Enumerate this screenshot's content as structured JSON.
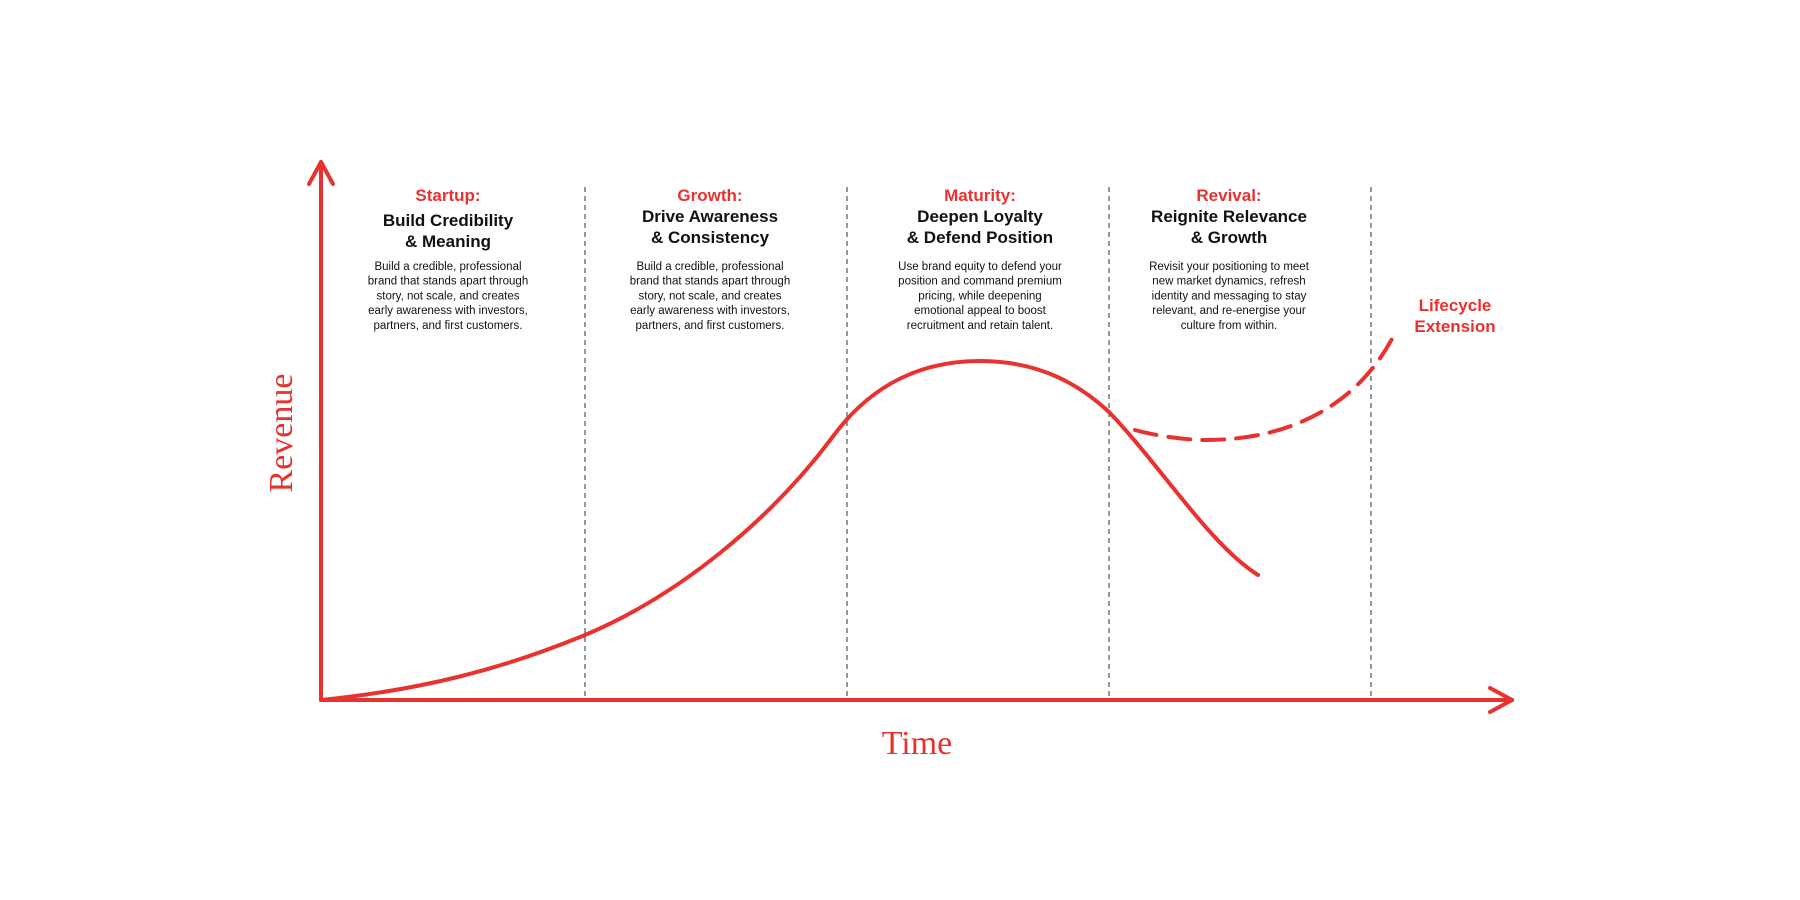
{
  "axes": {
    "y_label": "Revenue",
    "x_label": "Time"
  },
  "stages": [
    {
      "label": "Startup:",
      "title": [
        "Build Credibility",
        "& Meaning"
      ],
      "description": [
        "Build a credible, professional",
        "brand that stands apart through",
        "story, not scale, and creates",
        "early awareness with investors,",
        "partners, and first customers."
      ]
    },
    {
      "label": "Growth:",
      "title": [
        "Drive Awareness",
        "& Consistency"
      ],
      "description": [
        "Build a credible, professional",
        "brand that stands apart through",
        "story, not scale, and creates",
        "early awareness with investors,",
        "partners, and first customers."
      ]
    },
    {
      "label": "Maturity:",
      "title": [
        "Deepen Loyalty",
        "& Defend Position"
      ],
      "description": [
        "Use brand equity to defend your",
        "position and command premium",
        "pricing, while deepening",
        "emotional appeal to boost",
        "recruitment and retain talent."
      ]
    },
    {
      "label": "Revival:",
      "title": [
        "Reignite Relevance",
        "& Growth"
      ],
      "description": [
        "Revisit your positioning to meet",
        "new market dynamics, refresh",
        "identity and messaging to stay",
        "relevant, and re-energise your",
        "culture from within."
      ]
    }
  ],
  "extension": [
    "Lifecycle",
    "Extension"
  ]
}
